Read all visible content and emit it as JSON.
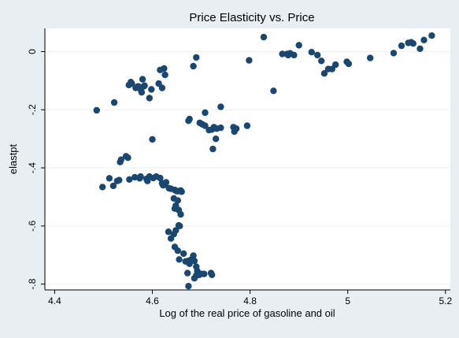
{
  "chart_data": {
    "type": "scatter",
    "title": "Price Elasticity vs. Price",
    "xlabel": "Log of the real price of gasoline and oil",
    "ylabel": "elastpt",
    "xlim": [
      4.38,
      5.21
    ],
    "ylim": [
      -0.82,
      0.08
    ],
    "x_ticks": [
      {
        "value": 4.4,
        "label": "4.4"
      },
      {
        "value": 4.6,
        "label": "4.6"
      },
      {
        "value": 4.8,
        "label": "4.8"
      },
      {
        "value": 5.0,
        "label": "5"
      },
      {
        "value": 5.2,
        "label": "5.2"
      }
    ],
    "y_ticks": [
      {
        "value": 0,
        "label": "0"
      },
      {
        "value": -0.2,
        "label": "-.2"
      },
      {
        "value": -0.4,
        "label": "-.4"
      },
      {
        "value": -0.6,
        "label": "-.6"
      },
      {
        "value": -0.8,
        "label": "-.8"
      }
    ],
    "grid": "y",
    "marker_color": "#1a476f",
    "points": [
      [
        4.486,
        -0.202
      ],
      [
        4.522,
        -0.175
      ],
      [
        4.552,
        -0.115
      ],
      [
        4.556,
        -0.105
      ],
      [
        4.558,
        -0.11
      ],
      [
        4.566,
        -0.125
      ],
      [
        4.57,
        -0.12
      ],
      [
        4.572,
        -0.12
      ],
      [
        4.576,
        -0.13
      ],
      [
        4.578,
        -0.14
      ],
      [
        4.58,
        -0.095
      ],
      [
        4.582,
        -0.12
      ],
      [
        4.584,
        -0.117
      ],
      [
        4.594,
        -0.16
      ],
      [
        4.598,
        -0.13
      ],
      [
        4.613,
        -0.11
      ],
      [
        4.616,
        -0.063
      ],
      [
        4.62,
        -0.125
      ],
      [
        4.624,
        -0.058
      ],
      [
        4.626,
        -0.08
      ],
      [
        4.684,
        -0.05
      ],
      [
        4.69,
        -0.02
      ],
      [
        4.674,
        -0.238
      ],
      [
        4.676,
        -0.232
      ],
      [
        4.697,
        -0.245
      ],
      [
        4.702,
        -0.25
      ],
      [
        4.708,
        -0.255
      ],
      [
        4.708,
        -0.21
      ],
      [
        4.716,
        -0.27
      ],
      [
        4.722,
        -0.268
      ],
      [
        4.724,
        -0.335
      ],
      [
        4.726,
        -0.26
      ],
      [
        4.73,
        -0.3
      ],
      [
        4.732,
        -0.265
      ],
      [
        4.74,
        -0.262
      ],
      [
        4.74,
        -0.19
      ],
      [
        4.766,
        -0.26
      ],
      [
        4.768,
        -0.275
      ],
      [
        4.772,
        -0.265
      ],
      [
        4.794,
        -0.255
      ],
      [
        4.798,
        -0.03
      ],
      [
        4.828,
        0.05
      ],
      [
        4.848,
        -0.135
      ],
      [
        4.866,
        -0.008
      ],
      [
        4.876,
        -0.008
      ],
      [
        4.878,
        -0.012
      ],
      [
        4.882,
        -0.006
      ],
      [
        4.89,
        -0.012
      ],
      [
        4.9,
        0.022
      ],
      [
        4.926,
        -0.002
      ],
      [
        4.938,
        -0.012
      ],
      [
        4.946,
        -0.032
      ],
      [
        4.952,
        -0.075
      ],
      [
        4.96,
        -0.06
      ],
      [
        4.968,
        -0.06
      ],
      [
        4.975,
        -0.045
      ],
      [
        4.998,
        -0.035
      ],
      [
        5.002,
        -0.042
      ],
      [
        5.046,
        -0.022
      ],
      [
        5.094,
        -0.005
      ],
      [
        5.11,
        0.02
      ],
      [
        5.124,
        0.03
      ],
      [
        5.13,
        0.032
      ],
      [
        5.134,
        0.028
      ],
      [
        5.148,
        0.01
      ],
      [
        5.156,
        0.04
      ],
      [
        5.172,
        0.055
      ],
      [
        4.498,
        -0.466
      ],
      [
        4.512,
        -0.436
      ],
      [
        4.52,
        -0.462
      ],
      [
        4.528,
        -0.445
      ],
      [
        4.532,
        -0.442
      ],
      [
        4.534,
        -0.38
      ],
      [
        4.536,
        -0.372
      ],
      [
        4.546,
        -0.36
      ],
      [
        4.55,
        -0.365
      ],
      [
        4.553,
        -0.44
      ],
      [
        4.564,
        -0.432
      ],
      [
        4.574,
        -0.436
      ],
      [
        4.576,
        -0.43
      ],
      [
        4.588,
        -0.438
      ],
      [
        4.59,
        -0.445
      ],
      [
        4.594,
        -0.43
      ],
      [
        4.6,
        -0.302
      ],
      [
        4.602,
        -0.435
      ],
      [
        4.608,
        -0.43
      ],
      [
        4.616,
        -0.435
      ],
      [
        4.62,
        -0.453
      ],
      [
        4.622,
        -0.46
      ],
      [
        4.626,
        -0.457
      ],
      [
        4.628,
        -0.45
      ],
      [
        4.634,
        -0.47
      ],
      [
        4.638,
        -0.472
      ],
      [
        4.646,
        -0.476
      ],
      [
        4.65,
        -0.48
      ],
      [
        4.655,
        -0.48
      ],
      [
        4.658,
        -0.478
      ],
      [
        4.66,
        -0.482
      ],
      [
        4.644,
        -0.505
      ],
      [
        4.646,
        -0.54
      ],
      [
        4.648,
        -0.53
      ],
      [
        4.652,
        -0.512
      ],
      [
        4.654,
        -0.545
      ],
      [
        4.658,
        -0.56
      ],
      [
        4.656,
        -0.6
      ],
      [
        4.654,
        -0.598
      ],
      [
        4.648,
        -0.615
      ],
      [
        4.644,
        -0.628
      ],
      [
        4.638,
        -0.643
      ],
      [
        4.633,
        -0.62
      ],
      [
        4.646,
        -0.672
      ],
      [
        4.652,
        -0.685
      ],
      [
        4.655,
        -0.715
      ],
      [
        4.664,
        -0.695
      ],
      [
        4.668,
        -0.722
      ],
      [
        4.674,
        -0.72
      ],
      [
        4.676,
        -0.73
      ],
      [
        4.68,
        -0.715
      ],
      [
        4.684,
        -0.702
      ],
      [
        4.686,
        -0.72
      ],
      [
        4.69,
        -0.74
      ],
      [
        4.692,
        -0.755
      ],
      [
        4.686,
        -0.78
      ],
      [
        4.69,
        -0.77
      ],
      [
        4.696,
        -0.768
      ],
      [
        4.7,
        -0.765
      ],
      [
        4.706,
        -0.765
      ],
      [
        4.72,
        -0.762
      ],
      [
        4.722,
        -0.768
      ],
      [
        4.674,
        -0.807
      ],
      [
        4.672,
        -0.762
      ]
    ]
  }
}
